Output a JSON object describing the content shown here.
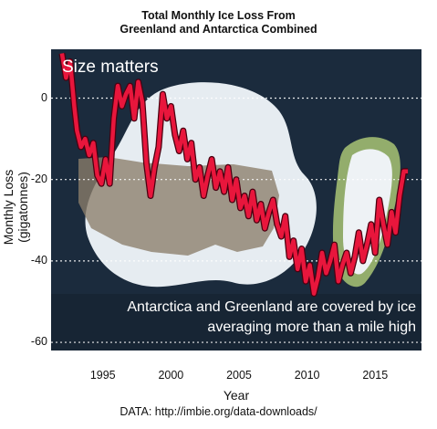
{
  "chart_data": {
    "type": "line",
    "title": "Total Monthly Ice Loss From\nGreenland and Antarctica Combined",
    "xlabel": "Year",
    "ylabel": "Monthly Loss (gigatonnes)",
    "xlim": [
      1991.2,
      2018.4
    ],
    "ylim": [
      -62,
      12
    ],
    "xticks": [
      1995,
      2000,
      2005,
      2010,
      2015
    ],
    "yticks": [
      0,
      -20,
      -40,
      -60
    ],
    "grid": "horizontal dotted",
    "annotations": [
      "Size matters",
      "Antarctica and Greenland are covered by ice\naveraging more than a mile high"
    ],
    "source": "DATA: http://imbie.org/data-downloads/",
    "series": [
      {
        "color": "#e8163c",
        "x": [
          1992.0,
          1992.3,
          1992.6,
          1992.9,
          1993.1,
          1993.4,
          1993.7,
          1994.0,
          1994.3,
          1994.6,
          1994.9,
          1995.2,
          1995.5,
          1995.8,
          1996.1,
          1996.4,
          1996.7,
          1997.0,
          1997.3,
          1997.6,
          1997.9,
          1998.2,
          1998.5,
          1998.8,
          1999.1,
          1999.4,
          1999.7,
          2000.0,
          2000.3,
          2000.6,
          2000.9,
          2001.2,
          2001.5,
          2001.8,
          2002.1,
          2002.4,
          2002.7,
          2003.0,
          2003.3,
          2003.6,
          2003.9,
          2004.2,
          2004.5,
          2004.8,
          2005.1,
          2005.4,
          2005.7,
          2006.0,
          2006.3,
          2006.6,
          2006.9,
          2007.2,
          2007.5,
          2007.8,
          2008.1,
          2008.4,
          2008.7,
          2009.0,
          2009.3,
          2009.6,
          2009.9,
          2010.2,
          2010.5,
          2010.8,
          2011.1,
          2011.4,
          2011.7,
          2012.0,
          2012.3,
          2012.6,
          2012.9,
          2013.2,
          2013.5,
          2013.8,
          2014.1,
          2014.4,
          2014.7,
          2015.0,
          2015.3,
          2015.6,
          2015.9,
          2016.2,
          2016.5,
          2016.8,
          2017.1,
          2017.4
        ],
        "y": [
          11,
          5,
          9,
          -2,
          -8,
          -12,
          -10,
          -14,
          -11,
          -19,
          -21,
          -15,
          -21,
          -5,
          3,
          -2,
          1,
          3,
          -5,
          4,
          -1,
          -16,
          -24,
          -17,
          -12,
          1,
          -5,
          -2,
          -9,
          -13,
          -8,
          -15,
          -11,
          -20,
          -17,
          -24,
          -19,
          -15,
          -22,
          -18,
          -23,
          -17,
          -25,
          -20,
          -27,
          -24,
          -29,
          -23,
          -30,
          -26,
          -32,
          -28,
          -25,
          -31,
          -34,
          -29,
          -39,
          -35,
          -42,
          -37,
          -45,
          -41,
          -48,
          -44,
          -38,
          -43,
          -40,
          -36,
          -45,
          -41,
          -38,
          -43,
          -39,
          -33,
          -40,
          -36,
          -31,
          -38,
          -25,
          -31,
          -36,
          -28,
          -33,
          -24,
          -18,
          -18
        ]
      }
    ]
  }
}
